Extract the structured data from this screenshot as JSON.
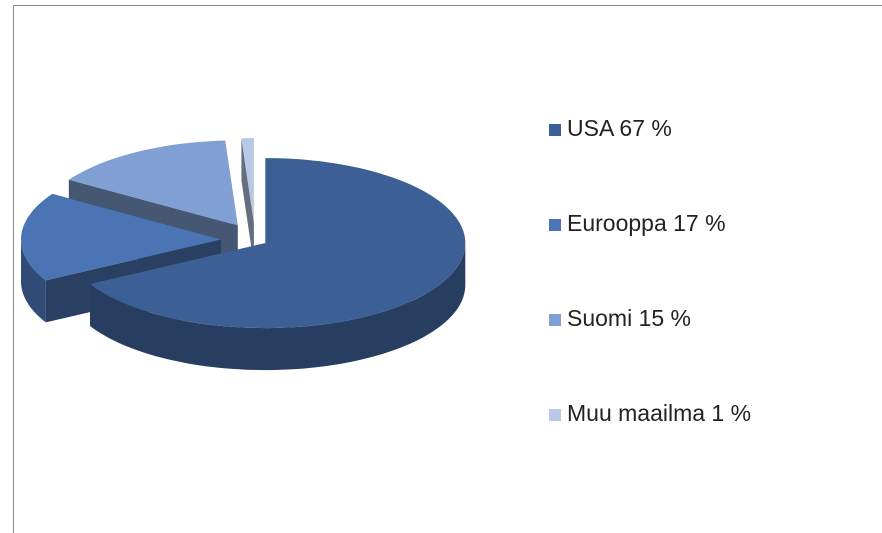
{
  "chart_data": {
    "type": "pie",
    "categories": [
      "USA 67 %",
      "Eurooppa 17 %",
      "Suomi 15 %",
      "Muu maailma 1 %"
    ],
    "values": [
      67,
      17,
      15,
      1
    ],
    "colors": [
      "#3c6095",
      "#4a74b4",
      "#809fd2",
      "#b8c8e6"
    ],
    "legend": "right"
  }
}
